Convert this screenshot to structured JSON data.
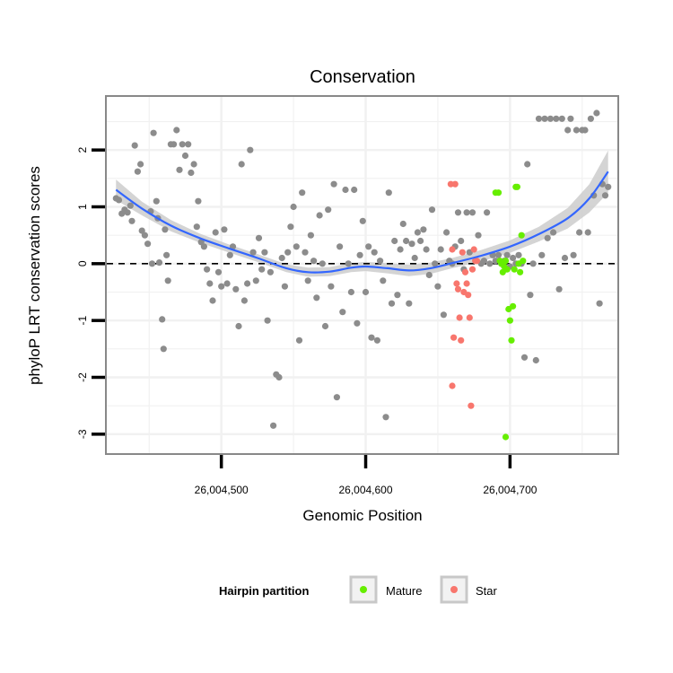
{
  "chart_data": {
    "type": "scatter",
    "title": "Conservation",
    "xlabel": "Genomic Position",
    "ylabel": "phyloP LRT conservation scores",
    "xlim": [
      26004420,
      26004775
    ],
    "ylim": [
      -3.35,
      2.95
    ],
    "x_ticks": [
      26004500,
      26004600,
      26004700
    ],
    "x_tick_labels": [
      "26,004,500",
      "26,004,600",
      "26,004,700"
    ],
    "y_ticks": [
      -3,
      -2,
      -1,
      0,
      1,
      2
    ],
    "y_tick_labels": [
      "-3",
      "-2",
      "-1",
      "0",
      "1",
      "2"
    ],
    "reference_line": {
      "y": 0,
      "style": "dashed"
    },
    "grid": true,
    "legend": {
      "title": "Hairpin partition",
      "position": "bottom",
      "entries": [
        {
          "label": "Mature",
          "color": "#66ee00"
        },
        {
          "label": "Star",
          "color": "#f8766d"
        }
      ]
    },
    "colors": {
      "other": "#8c8c8c",
      "mature": "#66ee00",
      "star": "#f8766d",
      "smooth": "#3366ff",
      "ribbon": "#cccccc"
    },
    "smooth_line": {
      "x": [
        26004427,
        26004445,
        26004465,
        26004485,
        26004505,
        26004525,
        26004545,
        26004560,
        26004575,
        26004590,
        26004600,
        26004615,
        26004630,
        26004645,
        26004660,
        26004680,
        26004700,
        26004720,
        26004740,
        26004755,
        26004768
      ],
      "y": [
        1.3,
        0.97,
        0.67,
        0.45,
        0.27,
        0.1,
        -0.08,
        -0.15,
        -0.14,
        -0.07,
        -0.05,
        -0.08,
        -0.12,
        -0.08,
        0.01,
        0.14,
        0.3,
        0.52,
        0.8,
        1.15,
        1.62
      ],
      "lower": [
        1.12,
        0.85,
        0.57,
        0.37,
        0.2,
        0.03,
        -0.15,
        -0.23,
        -0.22,
        -0.15,
        -0.13,
        -0.17,
        -0.22,
        -0.18,
        -0.08,
        0.04,
        0.19,
        0.39,
        0.62,
        0.9,
        1.25
      ],
      "upper": [
        1.48,
        1.09,
        0.77,
        0.53,
        0.34,
        0.17,
        -0.01,
        -0.07,
        -0.06,
        0.01,
        0.03,
        0.01,
        -0.02,
        0.02,
        0.1,
        0.24,
        0.41,
        0.65,
        0.98,
        1.4,
        1.99
      ]
    },
    "series": [
      {
        "name": "Other",
        "points": [
          [
            26004427,
            1.15
          ],
          [
            26004429,
            1.12
          ],
          [
            26004431,
            0.88
          ],
          [
            26004433,
            0.95
          ],
          [
            26004435,
            0.9
          ],
          [
            26004437,
            1.02
          ],
          [
            26004438,
            0.75
          ],
          [
            26004440,
            2.08
          ],
          [
            26004442,
            1.62
          ],
          [
            26004444,
            1.75
          ],
          [
            26004445,
            0.58
          ],
          [
            26004447,
            0.5
          ],
          [
            26004449,
            0.35
          ],
          [
            26004451,
            0.92
          ],
          [
            26004452,
            0.0
          ],
          [
            26004453,
            2.3
          ],
          [
            26004455,
            1.1
          ],
          [
            26004456,
            0.8
          ],
          [
            26004457,
            0.02
          ],
          [
            26004459,
            -0.98
          ],
          [
            26004460,
            -1.5
          ],
          [
            26004461,
            0.6
          ],
          [
            26004462,
            0.15
          ],
          [
            26004463,
            -0.3
          ],
          [
            26004465,
            2.1
          ],
          [
            26004467,
            2.1
          ],
          [
            26004469,
            2.35
          ],
          [
            26004471,
            1.65
          ],
          [
            26004473,
            2.1
          ],
          [
            26004475,
            1.9
          ],
          [
            26004477,
            2.1
          ],
          [
            26004479,
            1.6
          ],
          [
            26004481,
            1.75
          ],
          [
            26004483,
            0.65
          ],
          [
            26004484,
            1.1
          ],
          [
            26004486,
            0.38
          ],
          [
            26004488,
            0.3
          ],
          [
            26004490,
            -0.1
          ],
          [
            26004492,
            -0.35
          ],
          [
            26004494,
            -0.65
          ],
          [
            26004496,
            0.55
          ],
          [
            26004498,
            -0.15
          ],
          [
            26004500,
            -0.4
          ],
          [
            26004502,
            0.6
          ],
          [
            26004504,
            -0.35
          ],
          [
            26004506,
            0.15
          ],
          [
            26004508,
            0.3
          ],
          [
            26004510,
            -0.45
          ],
          [
            26004512,
            -1.1
          ],
          [
            26004514,
            1.75
          ],
          [
            26004516,
            -0.65
          ],
          [
            26004518,
            -0.35
          ],
          [
            26004520,
            2.0
          ],
          [
            26004522,
            0.2
          ],
          [
            26004524,
            -0.3
          ],
          [
            26004526,
            0.45
          ],
          [
            26004528,
            -0.1
          ],
          [
            26004530,
            0.2
          ],
          [
            26004532,
            -1.0
          ],
          [
            26004534,
            -0.15
          ],
          [
            26004536,
            -2.85
          ],
          [
            26004538,
            -1.95
          ],
          [
            26004540,
            -2.0
          ],
          [
            26004542,
            0.1
          ],
          [
            26004544,
            -0.4
          ],
          [
            26004546,
            0.2
          ],
          [
            26004548,
            0.65
          ],
          [
            26004550,
            1.0
          ],
          [
            26004552,
            0.3
          ],
          [
            26004554,
            -1.35
          ],
          [
            26004556,
            1.25
          ],
          [
            26004558,
            0.2
          ],
          [
            26004560,
            -0.3
          ],
          [
            26004562,
            0.5
          ],
          [
            26004564,
            0.05
          ],
          [
            26004566,
            -0.6
          ],
          [
            26004568,
            0.85
          ],
          [
            26004570,
            0.0
          ],
          [
            26004572,
            -1.1
          ],
          [
            26004574,
            0.95
          ],
          [
            26004576,
            -0.4
          ],
          [
            26004578,
            1.4
          ],
          [
            26004580,
            -2.35
          ],
          [
            26004582,
            0.3
          ],
          [
            26004584,
            -0.85
          ],
          [
            26004586,
            1.3
          ],
          [
            26004588,
            0.0
          ],
          [
            26004590,
            -0.5
          ],
          [
            26004592,
            1.3
          ],
          [
            26004594,
            -1.05
          ],
          [
            26004596,
            0.15
          ],
          [
            26004598,
            0.75
          ],
          [
            26004600,
            -0.5
          ],
          [
            26004602,
            0.3
          ],
          [
            26004604,
            -1.3
          ],
          [
            26004606,
            0.2
          ],
          [
            26004608,
            -1.35
          ],
          [
            26004610,
            0.05
          ],
          [
            26004612,
            -0.3
          ],
          [
            26004614,
            -2.7
          ],
          [
            26004616,
            1.25
          ],
          [
            26004618,
            -0.7
          ],
          [
            26004620,
            0.4
          ],
          [
            26004622,
            -0.55
          ],
          [
            26004624,
            0.25
          ],
          [
            26004626,
            0.7
          ],
          [
            26004628,
            0.4
          ],
          [
            26004630,
            -0.7
          ],
          [
            26004632,
            0.35
          ],
          [
            26004634,
            0.1
          ],
          [
            26004636,
            0.55
          ],
          [
            26004638,
            0.4
          ],
          [
            26004640,
            0.6
          ],
          [
            26004642,
            0.25
          ],
          [
            26004644,
            -0.2
          ],
          [
            26004646,
            0.95
          ],
          [
            26004648,
            0.0
          ],
          [
            26004650,
            -0.4
          ],
          [
            26004652,
            0.25
          ],
          [
            26004654,
            -0.9
          ],
          [
            26004656,
            0.55
          ],
          [
            26004658,
            0.05
          ],
          [
            26004660,
            0.0
          ],
          [
            26004662,
            0.3
          ],
          [
            26004664,
            0.9
          ],
          [
            26004666,
            0.4
          ],
          [
            26004668,
            -0.1
          ],
          [
            26004670,
            0.9
          ],
          [
            26004672,
            0.2
          ],
          [
            26004674,
            0.9
          ],
          [
            26004676,
            0.05
          ],
          [
            26004678,
            0.5
          ],
          [
            26004680,
            0.0
          ],
          [
            26004682,
            0.05
          ],
          [
            26004684,
            0.9
          ],
          [
            26004686,
            0.0
          ],
          [
            26004688,
            0.15
          ],
          [
            26004690,
            0.05
          ],
          [
            26004692,
            0.15
          ],
          [
            26004694,
            0.0
          ],
          [
            26004696,
            0.05
          ],
          [
            26004698,
            0.15
          ],
          [
            26004700,
            -0.05
          ],
          [
            26004702,
            0.1
          ],
          [
            26004704,
            0.0
          ],
          [
            26004706,
            0.15
          ],
          [
            26004708,
            0.0
          ],
          [
            26004710,
            -1.65
          ],
          [
            26004712,
            1.75
          ],
          [
            26004714,
            -0.55
          ],
          [
            26004716,
            0.0
          ],
          [
            26004718,
            -1.7
          ],
          [
            26004720,
            2.55
          ],
          [
            26004722,
            0.15
          ],
          [
            26004724,
            2.55
          ],
          [
            26004726,
            0.45
          ],
          [
            26004728,
            2.55
          ],
          [
            26004730,
            0.55
          ],
          [
            26004732,
            2.55
          ],
          [
            26004734,
            -0.45
          ],
          [
            26004736,
            2.55
          ],
          [
            26004738,
            0.1
          ],
          [
            26004740,
            2.35
          ],
          [
            26004742,
            2.55
          ],
          [
            26004744,
            0.15
          ],
          [
            26004746,
            2.35
          ],
          [
            26004748,
            0.55
          ],
          [
            26004750,
            2.35
          ],
          [
            26004752,
            2.35
          ],
          [
            26004754,
            0.55
          ],
          [
            26004756,
            2.55
          ],
          [
            26004758,
            1.2
          ],
          [
            26004760,
            2.65
          ],
          [
            26004762,
            -0.7
          ],
          [
            26004764,
            1.4
          ],
          [
            26004766,
            1.2
          ],
          [
            26004768,
            1.35
          ]
        ]
      },
      {
        "name": "Mature",
        "points": [
          [
            26004690,
            1.25
          ],
          [
            26004692,
            1.25
          ],
          [
            26004693,
            0.05
          ],
          [
            26004694,
            0.0
          ],
          [
            26004695,
            -0.15
          ],
          [
            26004696,
            -0.05
          ],
          [
            26004697,
            0.05
          ],
          [
            26004698,
            -0.1
          ],
          [
            26004699,
            -0.8
          ],
          [
            26004700,
            -1.0
          ],
          [
            26004701,
            -1.35
          ],
          [
            26004702,
            -0.75
          ],
          [
            26004703,
            -0.1
          ],
          [
            26004704,
            1.35
          ],
          [
            26004705,
            1.35
          ],
          [
            26004706,
            0.0
          ],
          [
            26004707,
            -0.15
          ],
          [
            26004708,
            0.5
          ],
          [
            26004709,
            0.05
          ],
          [
            26004697,
            -3.05
          ]
        ]
      },
      {
        "name": "Star",
        "points": [
          [
            26004659,
            1.4
          ],
          [
            26004662,
            1.4
          ],
          [
            26004660,
            0.25
          ],
          [
            26004661,
            -1.3
          ],
          [
            26004660,
            -2.15
          ],
          [
            26004663,
            -0.35
          ],
          [
            26004664,
            -0.45
          ],
          [
            26004665,
            -0.95
          ],
          [
            26004666,
            -1.35
          ],
          [
            26004667,
            0.2
          ],
          [
            26004668,
            -0.5
          ],
          [
            26004669,
            -0.15
          ],
          [
            26004670,
            -0.35
          ],
          [
            26004671,
            -0.55
          ],
          [
            26004672,
            -0.95
          ],
          [
            26004673,
            -2.5
          ],
          [
            26004674,
            -0.1
          ],
          [
            26004675,
            0.25
          ],
          [
            26004676,
            0.05
          ],
          [
            26004677,
            0.05
          ]
        ]
      }
    ]
  }
}
